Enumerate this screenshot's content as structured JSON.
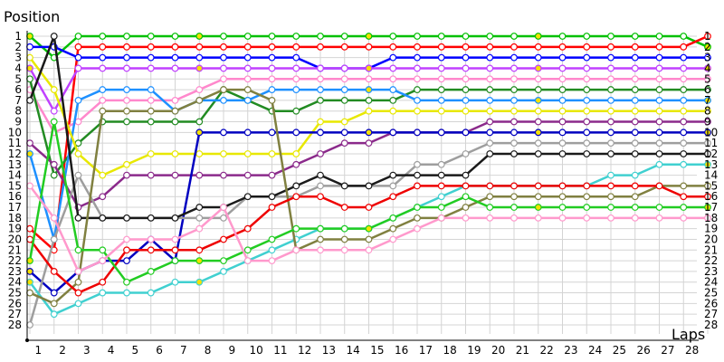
{
  "chart_data": {
    "type": "line",
    "ylabel": "Position",
    "xlabel": "Laps",
    "x": [
      0,
      1,
      2,
      3,
      4,
      5,
      6,
      7,
      8,
      9,
      10,
      11,
      12,
      13,
      14,
      15,
      16,
      17,
      18,
      19,
      20,
      21,
      22,
      23,
      24,
      25,
      26,
      27,
      28
    ],
    "x_tick_labels": [
      "1",
      "2",
      "3",
      "4",
      "5",
      "6",
      "7",
      "8",
      "9",
      "10",
      "11",
      "12",
      "13",
      "14",
      "15",
      "16",
      "17",
      "18",
      "19",
      "20",
      "21",
      "22",
      "23",
      "24",
      "25",
      "26",
      "27",
      "28"
    ],
    "y_tick_labels": [
      "1",
      "2",
      "3",
      "4",
      "5",
      "6",
      "7",
      "8",
      "9",
      "10",
      "11",
      "12",
      "13",
      "14",
      "15",
      "16",
      "17",
      "18",
      "19",
      "20",
      "21",
      "22",
      "23",
      "24",
      "25",
      "26",
      "27",
      "28"
    ],
    "ylim": [
      1,
      28
    ],
    "y_inverted": true,
    "grid": true,
    "series": [
      {
        "color": "#00c000",
        "values": [
          1,
          3,
          1,
          1,
          1,
          1,
          1,
          1,
          1,
          1,
          1,
          1,
          1,
          1,
          1,
          1,
          1,
          1,
          1,
          1,
          1,
          1,
          1,
          1,
          1,
          1,
          1,
          1,
          2
        ]
      },
      {
        "color": "#ff0000",
        "values": [
          19,
          21,
          2,
          2,
          2,
          2,
          2,
          2,
          2,
          2,
          2,
          2,
          2,
          2,
          2,
          2,
          2,
          2,
          2,
          2,
          2,
          2,
          2,
          2,
          2,
          2,
          2,
          2,
          1
        ]
      },
      {
        "color": "#0000ff",
        "values": [
          2,
          2,
          3,
          3,
          3,
          3,
          3,
          3,
          3,
          3,
          3,
          3,
          4,
          4,
          4,
          3,
          3,
          3,
          3,
          3,
          3,
          3,
          3,
          3,
          3,
          3,
          3,
          3,
          3
        ]
      },
      {
        "color": "#c040ff",
        "values": [
          4,
          8,
          4,
          4,
          4,
          4,
          4,
          4,
          4,
          4,
          4,
          4,
          4,
          4,
          4,
          4,
          4,
          4,
          4,
          4,
          4,
          4,
          4,
          4,
          4,
          4,
          4,
          4,
          4
        ]
      },
      {
        "color": "#ff88cc",
        "values": [
          6,
          10,
          9,
          7,
          7,
          7,
          7,
          6,
          5,
          5,
          5,
          5,
          5,
          5,
          5,
          5,
          5,
          5,
          5,
          5,
          5,
          5,
          5,
          5,
          5,
          5,
          5,
          5,
          5
        ]
      },
      {
        "color": "#228b22",
        "values": [
          5,
          14,
          11,
          9,
          9,
          9,
          9,
          9,
          6,
          7,
          8,
          8,
          7,
          7,
          7,
          7,
          6,
          6,
          6,
          6,
          6,
          6,
          6,
          6,
          6,
          6,
          6,
          6,
          6
        ]
      },
      {
        "color": "#1e90ff",
        "values": [
          12,
          20,
          7,
          6,
          6,
          6,
          8,
          7,
          7,
          7,
          6,
          6,
          6,
          6,
          6,
          6,
          7,
          7,
          7,
          7,
          7,
          7,
          7,
          7,
          7,
          7,
          7,
          7,
          7
        ]
      },
      {
        "color": "#e8e800",
        "values": [
          3,
          6,
          12,
          14,
          13,
          12,
          12,
          12,
          12,
          12,
          12,
          12,
          9,
          9,
          8,
          8,
          8,
          8,
          8,
          8,
          8,
          8,
          8,
          8,
          8,
          8,
          8,
          8,
          8
        ]
      },
      {
        "color": "#8b2a8b",
        "values": [
          11,
          13,
          17,
          16,
          14,
          14,
          14,
          14,
          14,
          14,
          14,
          13,
          12,
          11,
          11,
          10,
          10,
          10,
          10,
          9,
          9,
          9,
          9,
          9,
          9,
          9,
          9,
          9,
          9
        ]
      },
      {
        "color": "#0000c0",
        "values": [
          23,
          25,
          23,
          22,
          22,
          20,
          22,
          10,
          10,
          10,
          10,
          10,
          10,
          10,
          10,
          10,
          10,
          10,
          10,
          10,
          10,
          10,
          10,
          10,
          10,
          10,
          10,
          10,
          10
        ]
      },
      {
        "color": "#9e9e9e",
        "values": [
          28,
          20,
          14,
          18,
          18,
          18,
          18,
          18,
          18,
          16,
          16,
          16,
          15,
          15,
          15,
          15,
          13,
          13,
          12,
          11,
          11,
          11,
          11,
          11,
          11,
          11,
          11,
          11,
          11
        ]
      },
      {
        "color": "#1a1a1a",
        "values": [
          7,
          1,
          18,
          18,
          18,
          18,
          18,
          17,
          17,
          16,
          16,
          15,
          14,
          15,
          15,
          14,
          14,
          14,
          14,
          12,
          12,
          12,
          12,
          12,
          12,
          12,
          12,
          12,
          12
        ]
      },
      {
        "color": "#40d0d0",
        "values": [
          24,
          27,
          26,
          25,
          25,
          25,
          24,
          24,
          23,
          22,
          21,
          20,
          19,
          19,
          19,
          18,
          17,
          16,
          15,
          15,
          15,
          15,
          15,
          15,
          14,
          14,
          13,
          13,
          13
        ]
      },
      {
        "color": "#808040",
        "values": [
          25,
          26,
          24,
          8,
          8,
          8,
          8,
          7,
          6,
          6,
          7,
          21,
          20,
          20,
          20,
          19,
          18,
          18,
          17,
          16,
          16,
          16,
          16,
          16,
          16,
          16,
          15,
          15,
          15
        ]
      },
      {
        "color": "#ee0000",
        "values": [
          20,
          23,
          25,
          24,
          21,
          21,
          21,
          21,
          20,
          19,
          17,
          16,
          16,
          17,
          17,
          16,
          15,
          15,
          15,
          15,
          15,
          15,
          15,
          15,
          15,
          15,
          15,
          16,
          16
        ]
      },
      {
        "color": "#22cc22",
        "values": [
          22,
          9,
          21,
          21,
          24,
          23,
          22,
          22,
          22,
          21,
          20,
          19,
          19,
          19,
          19,
          18,
          17,
          17,
          16,
          17,
          17,
          17,
          17,
          17,
          17,
          17,
          17,
          17,
          17
        ]
      },
      {
        "color": "#ff99cc",
        "values": [
          15,
          18,
          23,
          22,
          20,
          20,
          20,
          19,
          17,
          22,
          22,
          21,
          21,
          21,
          21,
          20,
          19,
          18,
          18,
          18,
          18,
          18,
          18,
          18,
          18,
          18,
          18,
          18,
          18
        ]
      }
    ]
  }
}
